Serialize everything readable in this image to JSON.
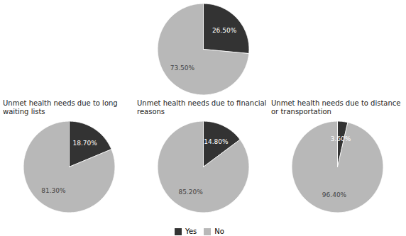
{
  "chart_data": [
    {
      "type": "pie",
      "categories": [
        "Yes",
        "No"
      ],
      "values": [
        26.5,
        73.5
      ],
      "value_labels": [
        "26.50%",
        "73.50%"
      ],
      "colors": [
        "#333333",
        "#b8b8b8"
      ],
      "data_labels": true,
      "legend": "bottom"
    },
    {
      "type": "pie",
      "title": "Unmet health needs due to long waiting lists",
      "categories": [
        "Yes",
        "No"
      ],
      "values": [
        18.7,
        81.3
      ],
      "value_labels": [
        "18.70%",
        "81.30%"
      ],
      "colors": [
        "#333333",
        "#b8b8b8"
      ],
      "data_labels": true
    },
    {
      "type": "pie",
      "title": "Unmet health needs due to financial reasons",
      "categories": [
        "Yes",
        "No"
      ],
      "values": [
        14.8,
        85.2
      ],
      "value_labels": [
        "14.80%",
        "85.20%"
      ],
      "colors": [
        "#333333",
        "#b8b8b8"
      ],
      "data_labels": true
    },
    {
      "type": "pie",
      "title": "Unmet health needs due to distance or transportation",
      "categories": [
        "Yes",
        "No"
      ],
      "values": [
        3.6,
        96.4
      ],
      "value_labels": [
        "3.60%",
        "96.40%"
      ],
      "colors": [
        "#333333",
        "#b8b8b8"
      ],
      "data_labels": true
    }
  ]
}
